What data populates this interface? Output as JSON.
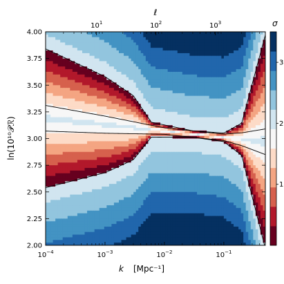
{
  "chart_data": {
    "type": "heatmap",
    "xlabel": "k [Mpc⁻¹]",
    "xlabel_var": "k",
    "xlabel_unit": "[Mpc⁻¹]",
    "ylabel": "ln(10¹⁰𝒫ℛ)",
    "top_axis_label": "ℓ",
    "colorbar_label": "σ",
    "x_scale": "log",
    "xlim": [
      0.0001,
      0.5
    ],
    "ylim": [
      2.0,
      4.0
    ],
    "x_ticks": [
      {
        "value": 0.0001,
        "base": "10",
        "exp": "−4"
      },
      {
        "value": 0.001,
        "base": "10",
        "exp": "−3"
      },
      {
        "value": 0.01,
        "base": "10",
        "exp": "−2"
      },
      {
        "value": 0.1,
        "base": "10",
        "exp": "−1"
      }
    ],
    "top_ticks": [
      {
        "value": 0.00072,
        "base": "10",
        "exp": "1"
      },
      {
        "value": 0.0072,
        "base": "10",
        "exp": "2"
      },
      {
        "value": 0.072,
        "base": "10",
        "exp": "3"
      }
    ],
    "y_ticks": [
      "2.00",
      "2.25",
      "2.50",
      "2.75",
      "3.00",
      "3.25",
      "3.50",
      "3.75",
      "4.00"
    ],
    "y_tick_values": [
      2.0,
      2.25,
      2.5,
      2.75,
      3.0,
      3.25,
      3.5,
      3.75,
      4.0
    ],
    "colorbar_ticks": [
      {
        "value": 1,
        "label": "1"
      },
      {
        "value": 2,
        "label": "2"
      },
      {
        "value": 3,
        "label": "3"
      }
    ],
    "colorbar_range": [
      0,
      3.5
    ],
    "colormap": [
      "#67001f",
      "#b2182b",
      "#d6604d",
      "#f4a582",
      "#fddbc7",
      "#f7f7f7",
      "#d1e5f0",
      "#92c5de",
      "#4393c3",
      "#2166ac",
      "#053061"
    ],
    "contour_levels": [
      1,
      2
    ],
    "band_center": [
      [
        0.0001,
        3.19
      ],
      [
        0.01,
        3.07
      ],
      [
        0.5,
        2.97
      ]
    ],
    "two_sigma_half_width": [
      [
        0.0001,
        0.65
      ],
      [
        0.001,
        0.45
      ],
      [
        0.003,
        0.3
      ],
      [
        0.006,
        0.07
      ],
      [
        0.03,
        0.03
      ],
      [
        0.1,
        0.04
      ],
      [
        0.2,
        0.15
      ],
      [
        0.5,
        1.0
      ]
    ],
    "one_sigma_half_width": [
      [
        0.0001,
        0.12
      ],
      [
        0.001,
        0.08
      ],
      [
        0.01,
        0.03
      ],
      [
        0.1,
        0.03
      ],
      [
        0.2,
        0.06
      ],
      [
        0.5,
        0.12
      ]
    ],
    "grid": false
  }
}
